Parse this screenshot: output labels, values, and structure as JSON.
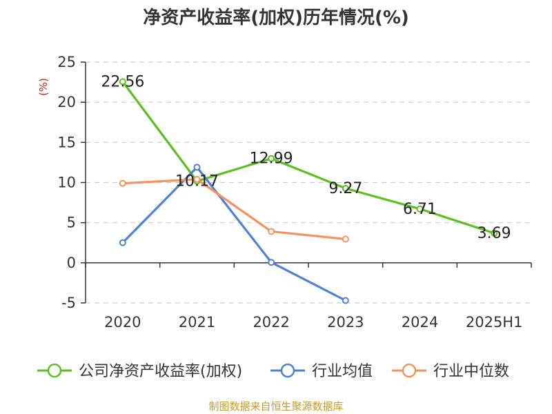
{
  "chart_data": {
    "type": "line",
    "title": "净资产收益率(加权)历年情况(%)",
    "ylabel": "(%)",
    "categories": [
      "2020",
      "2021",
      "2022",
      "2023",
      "2024",
      "2025H1"
    ],
    "ylim": [
      -5,
      25
    ],
    "yticks": [
      "25",
      "20",
      "15",
      "10",
      "5",
      "0",
      "-5"
    ],
    "grid": true,
    "legend_position": "bottom",
    "series": [
      {
        "name": "公司净资产收益率(加权)",
        "color": "#5cbf1f",
        "values": [
          22.56,
          10.17,
          12.99,
          9.27,
          6.71,
          3.69
        ],
        "labels": [
          "22.56",
          "10.17",
          "12.99",
          "9.27",
          "6.71",
          "3.69"
        ]
      },
      {
        "name": "行业均值",
        "color": "#4f7fd9",
        "values": [
          2.5,
          11.9,
          0.05,
          -4.7,
          null,
          null
        ]
      },
      {
        "name": "行业中位数",
        "color": "#f4935e",
        "values": [
          9.9,
          10.4,
          3.9,
          2.95,
          null,
          null
        ]
      }
    ]
  },
  "footer": {
    "source": "制图数据来自恒生聚源数据库",
    "source_color": "#c79a2e"
  },
  "ylabel_color": "#cc2222"
}
